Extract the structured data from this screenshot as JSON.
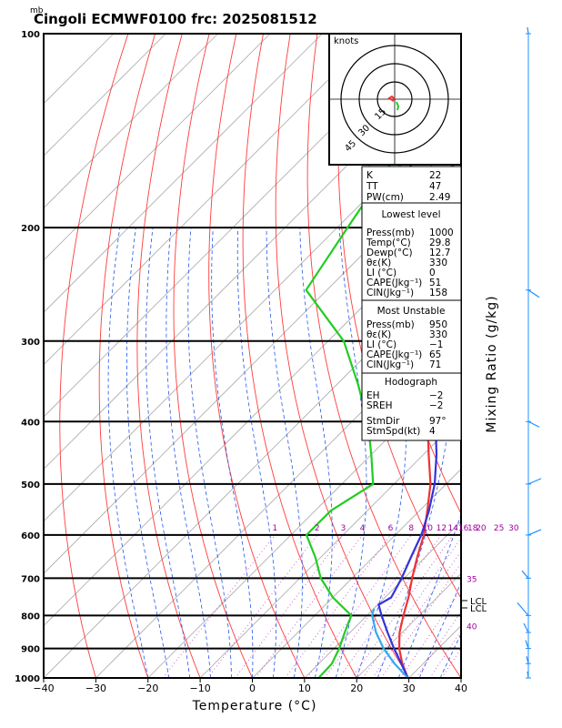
{
  "title": "Cingoli ECMWF0100  frc: 2025081512",
  "unit_label": "mb",
  "chart_data": {
    "type": "line",
    "title": "Cingoli ECMWF0100  frc: 2025081512",
    "xlabel": "Temperature (°C)",
    "ylabel": "Mixing Ratio (g/kg)",
    "x_ticks": [
      -40,
      -30,
      -20,
      -10,
      0,
      10,
      20,
      30,
      40
    ],
    "pressure_levels": [
      100,
      200,
      300,
      400,
      500,
      600,
      700,
      800,
      900,
      1000
    ],
    "xlim": [
      -40,
      40
    ],
    "ylim": [
      1000,
      100
    ],
    "mixing_ratio_labels": [
      "1",
      "2",
      "3",
      "4",
      "6",
      "8",
      "10",
      "12",
      "14",
      "16",
      "18",
      "20",
      "25",
      "30",
      "35",
      "40"
    ],
    "series": [
      {
        "name": "Temperature",
        "color": "#ee3333",
        "points": [
          [
            1000,
            29.8
          ],
          [
            950,
            26
          ],
          [
            900,
            22.5
          ],
          [
            850,
            19.5
          ],
          [
            800,
            17
          ],
          [
            750,
            14.5
          ],
          [
            700,
            11.5
          ],
          [
            650,
            8.5
          ],
          [
            600,
            5.5
          ],
          [
            550,
            1.5
          ],
          [
            500,
            -3
          ],
          [
            450,
            -9
          ],
          [
            400,
            -15.5
          ],
          [
            350,
            -22.5
          ],
          [
            300,
            -30.5
          ],
          [
            250,
            -41
          ],
          [
            200,
            -52
          ],
          [
            150,
            -62
          ],
          [
            100,
            -72
          ]
        ]
      },
      {
        "name": "Dewpoint",
        "color": "#22cc22",
        "points": [
          [
            1000,
            12.7
          ],
          [
            950,
            12.5
          ],
          [
            900,
            11
          ],
          [
            850,
            9
          ],
          [
            800,
            7
          ],
          [
            750,
            0
          ],
          [
            700,
            -6
          ],
          [
            650,
            -11
          ],
          [
            600,
            -17
          ],
          [
            550,
            -17
          ],
          [
            500,
            -14
          ],
          [
            450,
            -20
          ],
          [
            400,
            -27
          ],
          [
            350,
            -36
          ],
          [
            300,
            -47
          ],
          [
            250,
            -64
          ],
          [
            200,
            -68
          ],
          [
            150,
            -73
          ],
          [
            100,
            -80
          ]
        ]
      },
      {
        "name": "Parcel",
        "color": "#3333dd",
        "points": [
          [
            1000,
            29.8
          ],
          [
            950,
            25.8
          ],
          [
            900,
            21.5
          ],
          [
            850,
            17.2
          ],
          [
            800,
            12.8
          ],
          [
            770,
            10.2
          ],
          [
            750,
            11.2
          ],
          [
            700,
            9.5
          ],
          [
            650,
            7.3
          ],
          [
            600,
            5
          ],
          [
            550,
            1.8
          ],
          [
            500,
            -2.2
          ],
          [
            450,
            -7.5
          ],
          [
            400,
            -14
          ],
          [
            350,
            -22.5
          ],
          [
            300,
            -33
          ],
          [
            250,
            -45
          ],
          [
            200,
            -57
          ],
          [
            150,
            -71
          ],
          [
            120,
            -79
          ],
          [
            100,
            -84
          ]
        ]
      },
      {
        "name": "Parcel lower segment",
        "color": "#33aaee",
        "points": [
          [
            1000,
            29.8
          ],
          [
            950,
            24.5
          ],
          [
            900,
            19.5
          ],
          [
            850,
            15
          ],
          [
            800,
            11
          ],
          [
            780,
            10
          ]
        ]
      }
    ],
    "lcl_labels": [
      "LCL",
      "LCL"
    ]
  },
  "hodograph": {
    "label": "knots",
    "rings": [
      "15",
      "30",
      "45"
    ]
  },
  "indices": {
    "k_label": "K",
    "k_value": "22",
    "tt_label": "TT",
    "tt_value": "47",
    "pw_label": "PW(cm)",
    "pw_value": "2.49"
  },
  "lowest_level": {
    "header": "Lowest level",
    "rows": [
      {
        "label": "Press(mb)",
        "value": "1000"
      },
      {
        "label": "Temp(°C)",
        "value": "29.8"
      },
      {
        "label": "Dewp(°C)",
        "value": "12.7"
      },
      {
        "label": "θε(K)",
        "value": "330"
      },
      {
        "label": "LI (°C)",
        "value": "0"
      },
      {
        "label": "CAPE(Jkg⁻¹)",
        "value": "51"
      },
      {
        "label": "CIN(Jkg⁻¹)",
        "value": "158"
      }
    ]
  },
  "most_unstable": {
    "header": "Most Unstable",
    "rows": [
      {
        "label": "Press(mb)",
        "value": "950"
      },
      {
        "label": "θε(K)",
        "value": "330"
      },
      {
        "label": "LI (°C)",
        "value": "−1"
      },
      {
        "label": "CAPE(Jkg⁻¹)",
        "value": "65"
      },
      {
        "label": "CIN(Jkg⁻¹)",
        "value": "71"
      }
    ]
  },
  "hodograph_panel": {
    "header": "Hodograph",
    "rows": [
      {
        "label": "EH",
        "value": "−2"
      },
      {
        "label": "SREH",
        "value": "−2"
      },
      {
        "label": "StmDir",
        "value": "97°"
      },
      {
        "label": "StmSpd(kt)",
        "value": "4"
      }
    ]
  }
}
